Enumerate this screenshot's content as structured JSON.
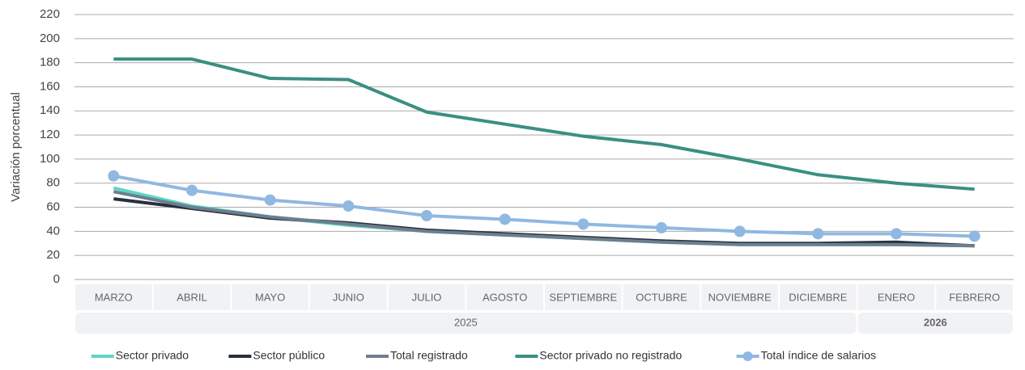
{
  "chart_data": {
    "type": "line",
    "y_label": "Variación porcentual",
    "category_groups": [
      {
        "label": "2025",
        "categories": [
          "MARZO",
          "ABRIL",
          "MAYO",
          "JUNIO",
          "JULIO",
          "AGOSTO",
          "SEPTIEMBRE",
          "OCTUBRE",
          "NOVIEMBRE",
          "DICIEMBRE"
        ]
      },
      {
        "label": "2026",
        "categories": [
          "ENERO",
          "FEBRERO"
        ]
      }
    ],
    "series": [
      {
        "name": "Sector privado",
        "color": "#5dd6c6",
        "values": [
          76,
          61,
          52,
          45,
          40,
          37,
          34,
          31,
          29,
          29,
          29,
          28
        ]
      },
      {
        "name": "Sector público",
        "color": "#27313d",
        "values": [
          67,
          59,
          51,
          47,
          41,
          38,
          35,
          32,
          30,
          30,
          31,
          28
        ]
      },
      {
        "name": "Total registrado",
        "color": "#6d7e8e",
        "values": [
          73,
          60,
          52,
          46,
          40,
          37,
          34,
          31,
          29,
          29,
          29,
          28
        ]
      },
      {
        "name": "Sector privado no registrado",
        "color": "#3a8f80",
        "values": [
          183,
          183,
          167,
          166,
          139,
          129,
          119,
          112,
          100,
          87,
          80,
          75
        ]
      },
      {
        "name": "Total índice de salarios",
        "color": "#8fb8e2",
        "markers": true,
        "values": [
          86,
          74,
          66,
          61,
          53,
          50,
          46,
          43,
          40,
          38,
          38,
          36
        ]
      }
    ],
    "ylim": [
      0,
      220
    ],
    "yticks": [
      0,
      20,
      40,
      60,
      80,
      100,
      120,
      140,
      160,
      180,
      200,
      220
    ],
    "grid": true
  }
}
